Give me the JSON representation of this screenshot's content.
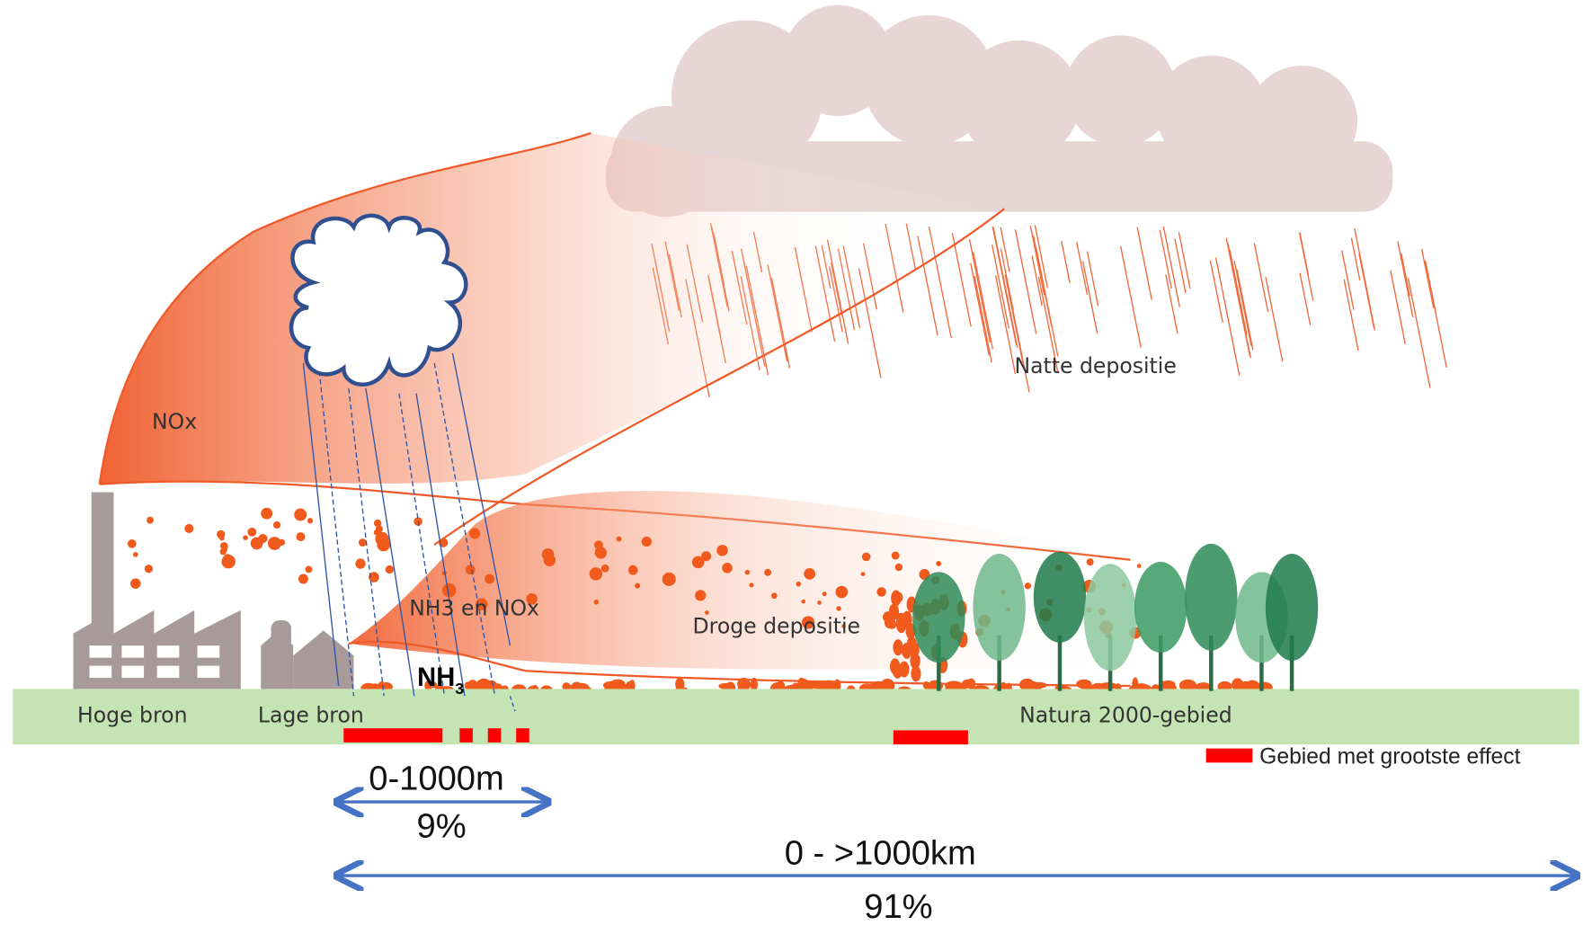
{
  "labels": {
    "nox": "NOx",
    "nh3_nox": "NH3 en NOx",
    "dry": "Droge depositie",
    "wet": "Natte depositie",
    "high_source": "Hoge bron",
    "low_source": "Lage bron",
    "natura": "Natura 2000-gebied",
    "nh3_main": "NH",
    "nh3_sub": "3"
  },
  "legend": "Gebied met grootste effect",
  "scales": {
    "short_range": "0-1000m",
    "short_share": "9%",
    "long_range": "0 - >1000km",
    "long_share": "91%"
  }
}
